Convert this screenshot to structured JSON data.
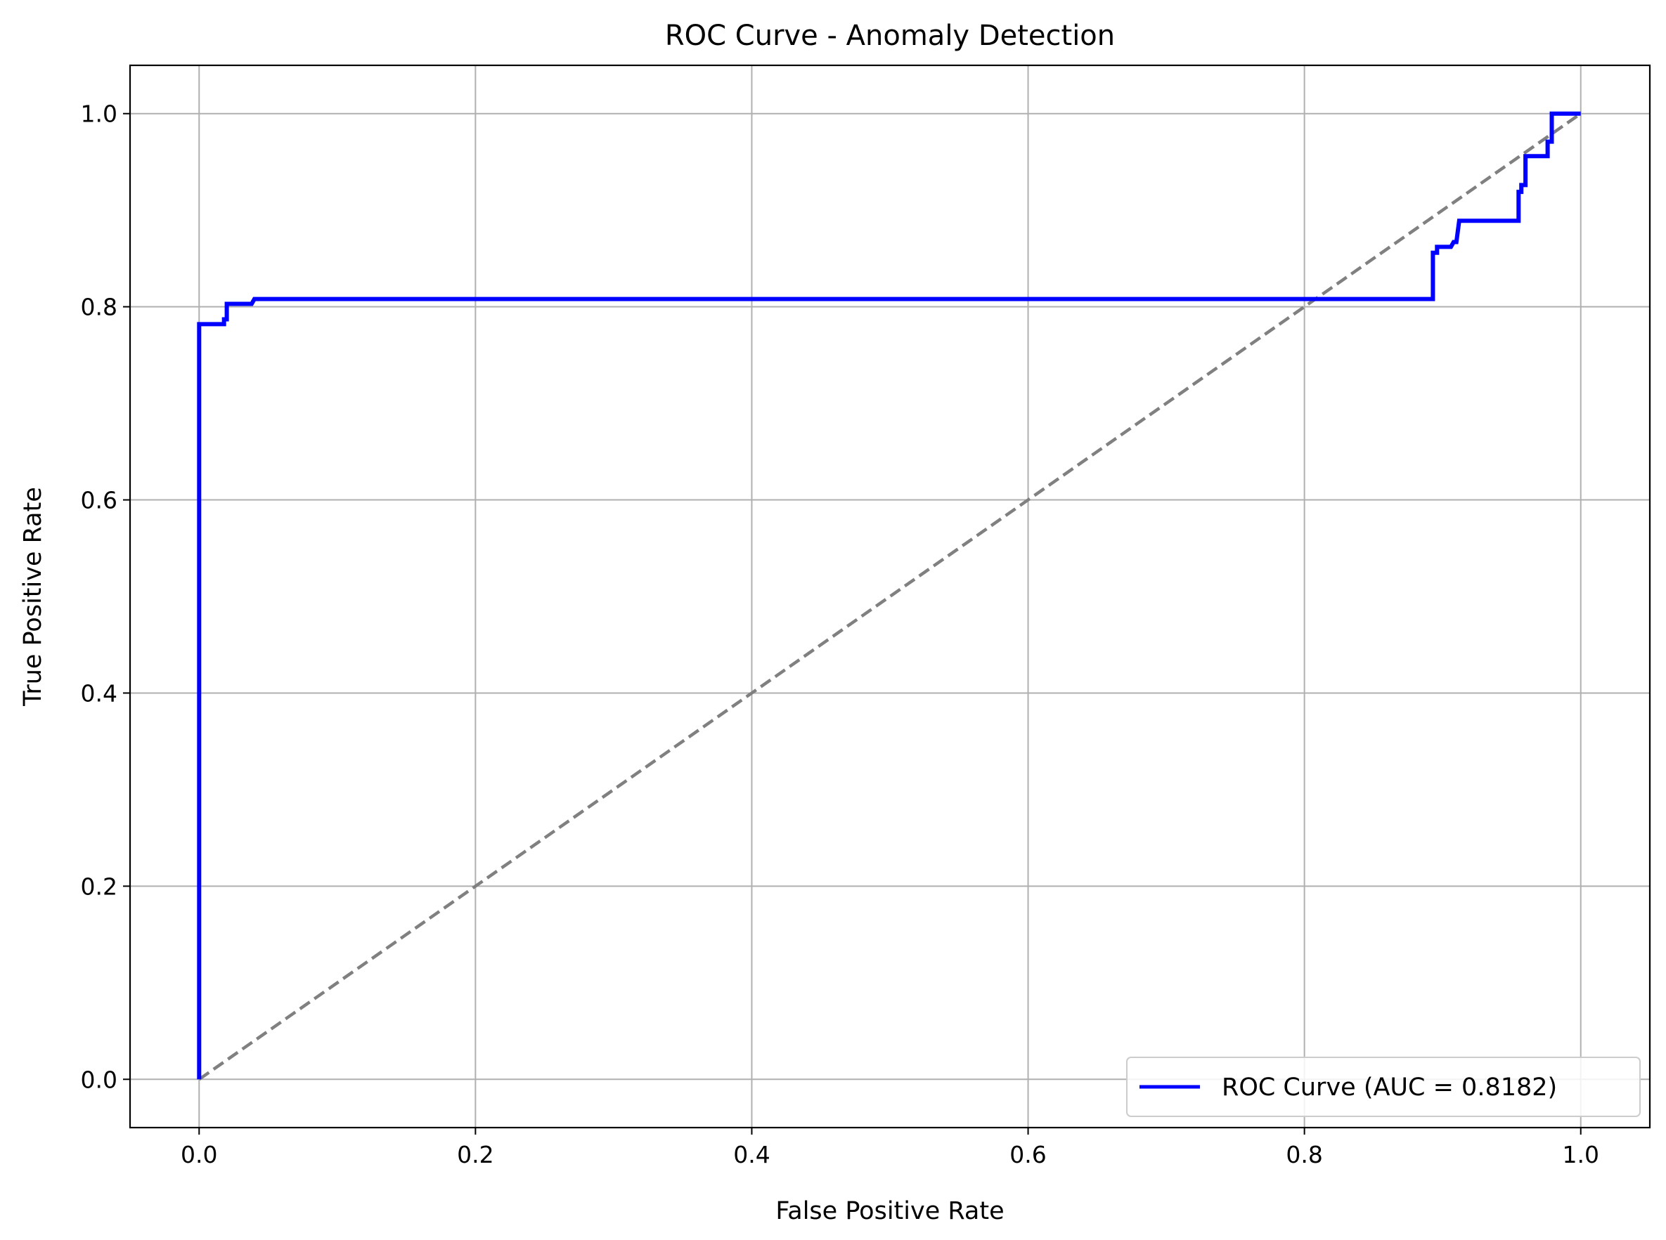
{
  "chart_data": {
    "type": "line",
    "title": "ROC Curve - Anomaly Detection",
    "xlabel": "False Positive Rate",
    "ylabel": "True Positive Rate",
    "xlim": [
      -0.05,
      1.05
    ],
    "ylim": [
      -0.05,
      1.05
    ],
    "x_ticks": [
      "0.0",
      "0.2",
      "0.4",
      "0.6",
      "0.8",
      "1.0"
    ],
    "y_ticks": [
      "0.0",
      "0.2",
      "0.4",
      "0.6",
      "0.8",
      "1.0"
    ],
    "grid": true,
    "legend_position": "lower-right",
    "series": [
      {
        "name": "ROC Curve (AUC = 0.8182)",
        "color": "#0000ff",
        "style": "solid",
        "x": [
          0.0,
          0.0,
          0.018,
          0.018,
          0.02,
          0.02,
          0.038,
          0.04,
          0.893,
          0.893,
          0.896,
          0.896,
          0.906,
          0.908,
          0.91,
          0.912,
          0.955,
          0.955,
          0.957,
          0.957,
          0.96,
          0.96,
          0.976,
          0.976,
          0.979,
          0.979,
          1.0
        ],
        "y": [
          0.0,
          0.782,
          0.782,
          0.787,
          0.787,
          0.803,
          0.803,
          0.808,
          0.808,
          0.856,
          0.856,
          0.862,
          0.862,
          0.867,
          0.867,
          0.889,
          0.889,
          0.919,
          0.919,
          0.926,
          0.926,
          0.956,
          0.956,
          0.971,
          0.971,
          1.0,
          1.0
        ]
      },
      {
        "color": "#808080",
        "style": "dashed",
        "x": [
          0.0,
          1.0
        ],
        "y": [
          0.0,
          1.0
        ]
      }
    ]
  }
}
